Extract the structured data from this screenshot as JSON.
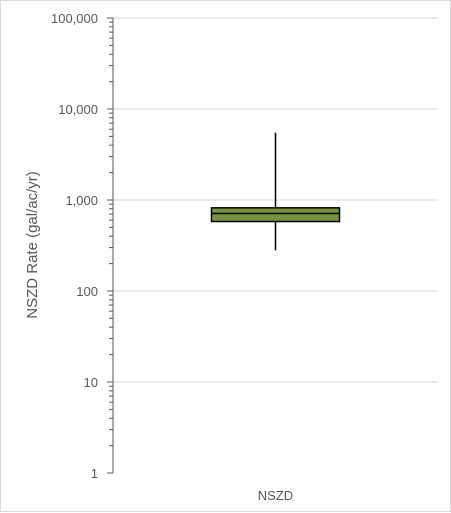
{
  "chart_data": {
    "type": "box",
    "title": "",
    "xlabel": "",
    "ylabel": "NSZD Rate (gal/ac/yr)",
    "yscale": "log",
    "ylim": [
      1,
      100000
    ],
    "yticks": [
      1,
      10,
      100,
      1000,
      10000,
      100000
    ],
    "ytick_labels": [
      "1",
      "10",
      "100",
      "1,000",
      "10,000",
      "100,000"
    ],
    "grid": true,
    "legend": "none",
    "categories": [
      "NSZD"
    ],
    "series": [
      {
        "category": "NSZD",
        "min": 280,
        "q1": 580,
        "median": 710,
        "q3": 820,
        "max": 5500
      }
    ],
    "colors": {
      "box_fill": "#77933C",
      "box_stroke": "#000000",
      "whisker": "#000000",
      "grid": "#d9d9d9",
      "axis": "#595959"
    }
  }
}
